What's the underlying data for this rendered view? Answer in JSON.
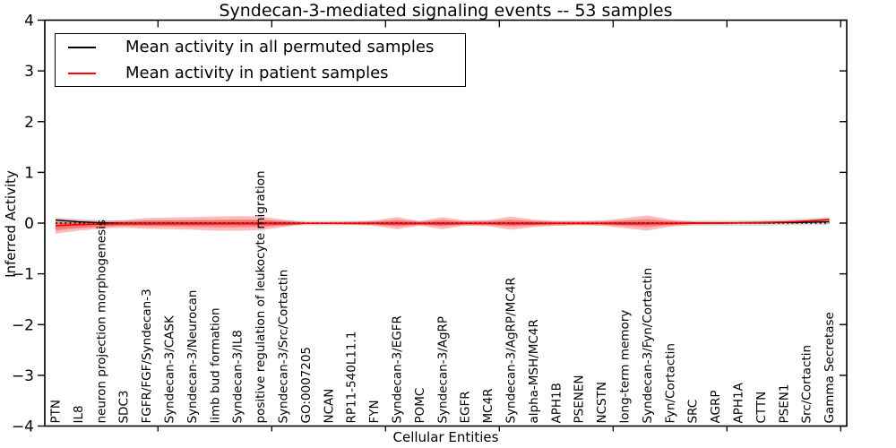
{
  "chart_data": {
    "type": "line",
    "title": "Syndecan-3-mediated signaling events -- 53 samples",
    "xlabel": "Cellular Entities",
    "ylabel": "Inferred Activity",
    "ylim": [
      -4,
      4
    ],
    "ytick_labels": [
      "4",
      "3",
      "2",
      "1",
      "0",
      "−1",
      "−2",
      "−3",
      "−4"
    ],
    "ytick_values": [
      4,
      3,
      2,
      1,
      0,
      -1,
      -2,
      -3,
      -4
    ],
    "xtick_boundary_indices": [
      4,
      9,
      14,
      19,
      24,
      29,
      34
    ],
    "grid": false,
    "legend_position": "upper left",
    "legend": [
      {
        "label": "Mean activity in all permuted samples",
        "color": "#000000"
      },
      {
        "label": "Mean activity in patient samples",
        "color": "#ff0000"
      }
    ],
    "colors": {
      "permuted_line": "#000000",
      "patient_line": "#ff0000",
      "patient_band": "#ff0000",
      "permuted_band": "#909090",
      "zero_line": "#000000"
    },
    "categories": [
      "PTN",
      "IL8",
      "neuron projection morphogenesis",
      "SDC3",
      "FGFR/FGF/Syndecan-3",
      "Syndecan-3/CASK",
      "Syndecan-3/Neurocan",
      "limb bud formation",
      "Syndecan-3/IL8",
      "positive regulation of leukocyte migration",
      "Syndecan-3/Src/Cortactin",
      "GO:0007205",
      "NCAN",
      "RP11-540L11.1",
      "FYN",
      "Syndecan-3/EGFR",
      "POMC",
      "Syndecan-3/AgRP",
      "EGFR",
      "MC4R",
      "Syndecan-3/AgRP/MC4R",
      "alpha-MSH/MC4R",
      "APH1B",
      "PSENEN",
      "NCSTN",
      "long-term memory",
      "Syndecan-3/Fyn/Cortactin",
      "Fyn/Cortactin",
      "SRC",
      "AGRP",
      "APH1A",
      "CTTN",
      "PSEN1",
      "Src/Cortactin",
      "Gamma Secretase"
    ],
    "series": [
      {
        "name": "Mean activity in all permuted samples",
        "values": [
          0.06,
          0.025,
          0.005,
          -0.005,
          -0.005,
          -0.005,
          -0.005,
          -0.005,
          -0.005,
          -0.005,
          -0.005,
          -0.003,
          -0.003,
          -0.003,
          -0.003,
          -0.005,
          -0.005,
          -0.005,
          -0.005,
          -0.005,
          -0.005,
          -0.005,
          -0.005,
          -0.003,
          -0.003,
          -0.005,
          -0.005,
          -0.003,
          0,
          0,
          0.003,
          0.005,
          0.01,
          0.015,
          0.025
        ]
      },
      {
        "name": "Mean activity in patient samples",
        "values": [
          -0.05,
          -0.03,
          -0.02,
          -0.015,
          -0.015,
          -0.014,
          -0.014,
          -0.013,
          -0.013,
          -0.013,
          -0.012,
          -0.005,
          -0.005,
          -0.006,
          -0.008,
          -0.012,
          -0.008,
          -0.012,
          -0.008,
          -0.008,
          -0.013,
          -0.01,
          -0.006,
          -0.005,
          -0.006,
          -0.012,
          -0.013,
          -0.008,
          -0.004,
          0.0,
          0.005,
          0.012,
          0.022,
          0.04,
          0.07
        ]
      }
    ],
    "patient_band_low": [
      -0.21,
      -0.15,
      -0.11,
      -0.09,
      -0.11,
      -0.12,
      -0.13,
      -0.15,
      -0.15,
      -0.14,
      -0.08,
      -0.02,
      -0.02,
      -0.03,
      -0.05,
      -0.12,
      -0.05,
      -0.12,
      -0.05,
      -0.06,
      -0.13,
      -0.08,
      -0.05,
      -0.04,
      -0.05,
      -0.1,
      -0.15,
      -0.07,
      -0.03,
      -0.025,
      -0.02,
      -0.015,
      -0.01,
      0.0,
      0.03
    ],
    "patient_band_high": [
      0.08,
      0.06,
      0.04,
      0.06,
      0.1,
      0.11,
      0.12,
      0.13,
      0.14,
      0.13,
      0.07,
      0.02,
      0.02,
      0.03,
      0.05,
      0.12,
      0.04,
      0.12,
      0.05,
      0.06,
      0.13,
      0.07,
      0.04,
      0.04,
      0.05,
      0.1,
      0.15,
      0.07,
      0.03,
      0.025,
      0.025,
      0.03,
      0.04,
      0.06,
      0.1
    ],
    "permuted_band_low": [
      -0.1,
      -0.08,
      -0.06,
      -0.05,
      -0.05,
      -0.05,
      -0.05,
      -0.05,
      -0.05,
      -0.05,
      -0.05,
      -0.045,
      -0.045,
      -0.045,
      -0.045,
      -0.045,
      -0.045,
      -0.045,
      -0.045,
      -0.045,
      -0.045,
      -0.045,
      -0.045,
      -0.045,
      -0.045,
      -0.045,
      -0.045,
      -0.045,
      -0.05,
      -0.05,
      -0.05,
      -0.05,
      -0.045,
      -0.04,
      -0.04
    ],
    "permuted_band_high": [
      0.11,
      0.08,
      0.06,
      0.05,
      0.05,
      0.05,
      0.05,
      0.05,
      0.05,
      0.05,
      0.05,
      0.045,
      0.045,
      0.045,
      0.045,
      0.045,
      0.045,
      0.045,
      0.045,
      0.045,
      0.045,
      0.045,
      0.045,
      0.045,
      0.045,
      0.045,
      0.045,
      0.045,
      0.05,
      0.05,
      0.055,
      0.06,
      0.07,
      0.09,
      0.12
    ]
  }
}
